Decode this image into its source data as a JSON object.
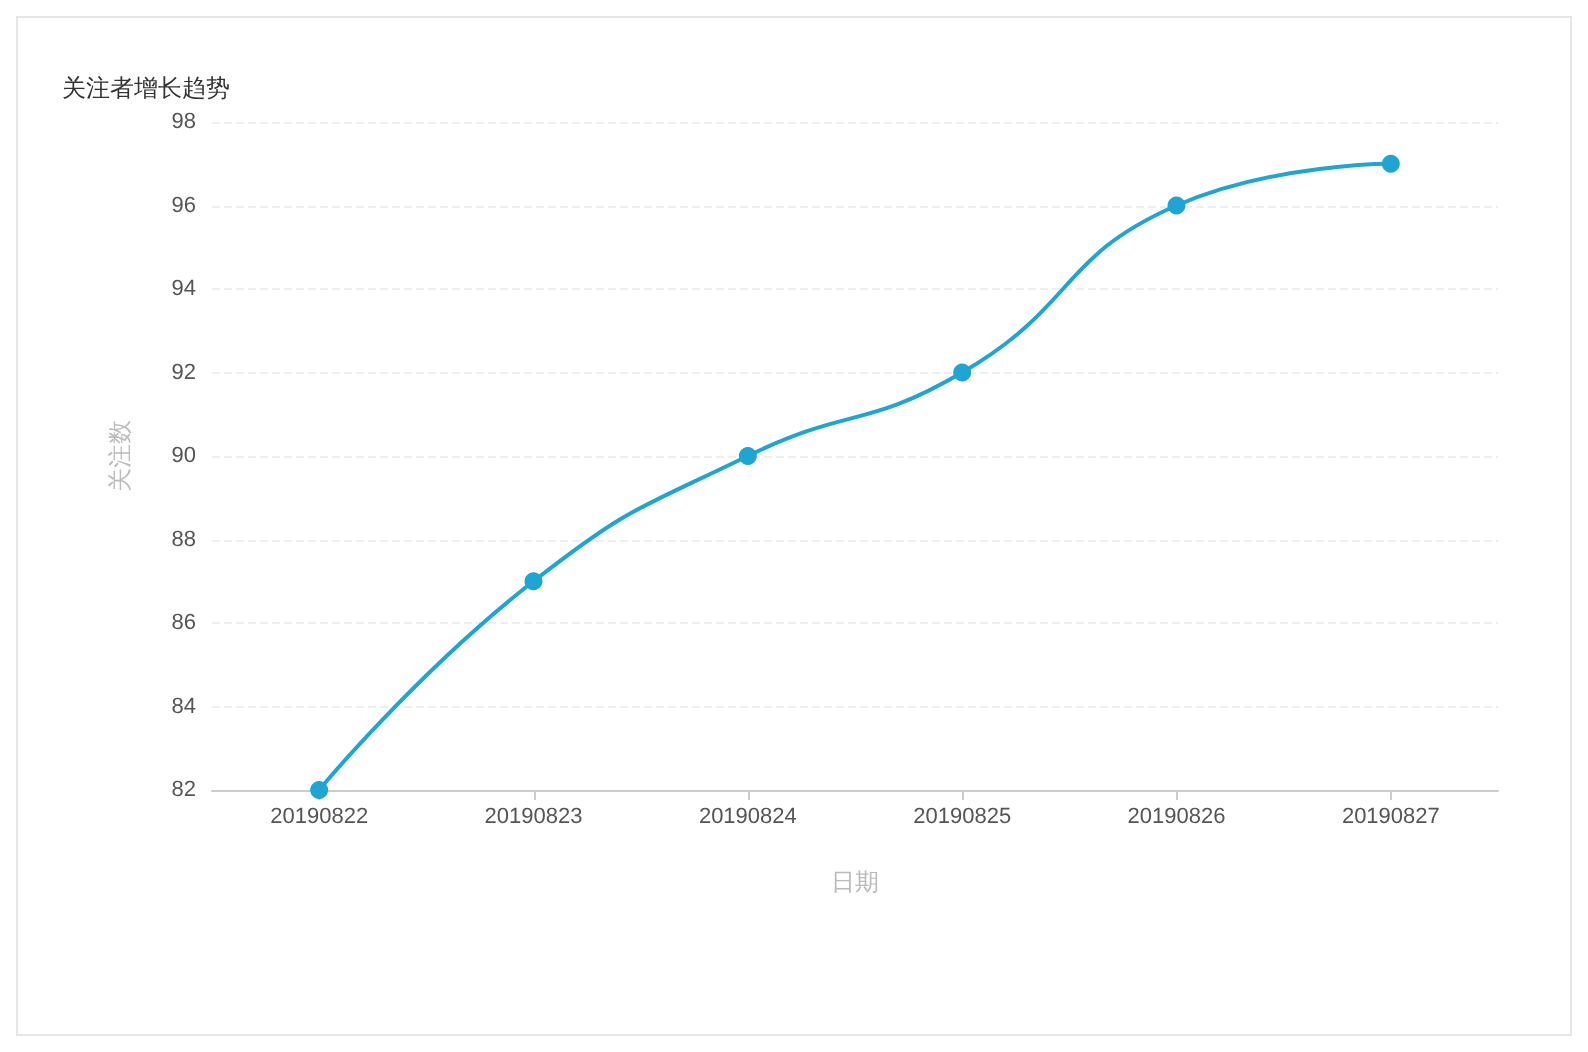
{
  "chart_data": {
    "type": "line",
    "title": "关注者增长趋势",
    "xlabel": "日期",
    "ylabel": "关注数",
    "categories": [
      "20190822",
      "20190823",
      "20190824",
      "20190825",
      "20190826",
      "20190827"
    ],
    "series": [
      {
        "color": "#1ea5d4",
        "values": [
          82,
          87,
          90,
          92,
          96,
          97
        ]
      }
    ],
    "ylim": [
      82,
      98
    ],
    "yticks": [
      82,
      84,
      86,
      88,
      90,
      92,
      94,
      96,
      98
    ],
    "grid": "y",
    "marker": "circle",
    "line_style": "solid"
  }
}
